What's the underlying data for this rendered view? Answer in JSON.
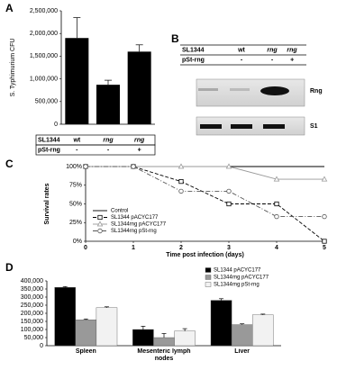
{
  "panel_labels": [
    "A",
    "B",
    "C",
    "D"
  ],
  "chart_data": [
    {
      "type": "bar",
      "ylabel": "S. Typhimurium CFU",
      "values": [
        1900000,
        870000,
        1600000
      ],
      "errors": [
        450000,
        100000,
        150000
      ],
      "color": "#000000",
      "ylim": [
        0,
        2500000
      ],
      "yticks": [
        {
          "value": 0,
          "label": "0"
        },
        {
          "value": 500000,
          "label": "500,000"
        },
        {
          "value": 1000000,
          "label": "1,000,000"
        },
        {
          "value": 1500000,
          "label": "1,500,000"
        },
        {
          "value": 2000000,
          "label": "2,000,000"
        },
        {
          "value": 2500000,
          "label": "2,500,000"
        }
      ],
      "table": [
        [
          "SL1344",
          "wt",
          "rng",
          "rng"
        ],
        [
          "pSt-rng",
          "-",
          "-",
          "+"
        ]
      ]
    },
    {
      "type": "line",
      "xlabel": "Time post infection (days)",
      "ylabel": "Survival rates",
      "x": [
        0,
        1,
        2,
        3,
        4,
        5
      ],
      "xlim": [
        0,
        5
      ],
      "xticks": [
        0,
        1,
        2,
        3,
        4,
        5
      ],
      "ylim": [
        0,
        100
      ],
      "yticks": [
        {
          "value": 0,
          "label": "0%"
        },
        {
          "value": 25,
          "label": "25%"
        },
        {
          "value": 50,
          "label": "50%"
        },
        {
          "value": 75,
          "label": "75%"
        },
        {
          "value": 100,
          "label": "100%"
        }
      ],
      "series": [
        {
          "name": "Control",
          "color": "#000000",
          "marker": "none",
          "dash": "none",
          "values": [
            100,
            100,
            100,
            100,
            100,
            100
          ]
        },
        {
          "name": "SL1344 pACYC177",
          "color": "#000000",
          "marker": "square",
          "dash": "4 2",
          "values": [
            100,
            100,
            80,
            50,
            50,
            0
          ]
        },
        {
          "name": "SL1344rng pACYC177",
          "color": "#999999",
          "marker": "triangle",
          "dash": "none",
          "values": [
            100,
            100,
            100,
            100,
            83,
            83
          ]
        },
        {
          "name": "SL1344rng pSt-rng",
          "color": "#555555",
          "marker": "circle",
          "dash": "5 2 1 2",
          "values": [
            100,
            100,
            67,
            67,
            33,
            33
          ]
        }
      ]
    },
    {
      "type": "grouped_bar",
      "categories": [
        "Spleen",
        "Mesenteric lymph nodes",
        "Liver"
      ],
      "ylim": [
        0,
        400000
      ],
      "yticks": [
        {
          "value": 0,
          "label": "0"
        },
        {
          "value": 50000,
          "label": "50,000"
        },
        {
          "value": 100000,
          "label": "100,000"
        },
        {
          "value": 150000,
          "label": "150,000"
        },
        {
          "value": 200000,
          "label": "200,000"
        },
        {
          "value": 250000,
          "label": "250,000"
        },
        {
          "value": 300000,
          "label": "300,000"
        },
        {
          "value": 350000,
          "label": "350,000"
        },
        {
          "value": 400000,
          "label": "400,000"
        }
      ],
      "series": [
        {
          "name": "SL1344 pACYC177",
          "color": "#000000",
          "values": [
            360000,
            100000,
            280000
          ],
          "errors": [
            5000,
            20000,
            10000
          ]
        },
        {
          "name": "SL1344rng pACYC177",
          "color": "#999999",
          "values": [
            160000,
            50000,
            130000
          ],
          "errors": [
            5000,
            25000,
            5000
          ]
        },
        {
          "name": "SL1344rng pSt-rng",
          "color": "#f2f2f2",
          "values": [
            235000,
            90000,
            190000
          ],
          "errors": [
            5000,
            15000,
            5000
          ]
        }
      ]
    }
  ],
  "blot": {
    "table": [
      [
        "SL1344",
        "wt",
        "rng",
        "rng"
      ],
      [
        "pSt-rng",
        "-",
        "-",
        "+"
      ]
    ],
    "bands": [
      "Rng",
      "S1"
    ]
  }
}
